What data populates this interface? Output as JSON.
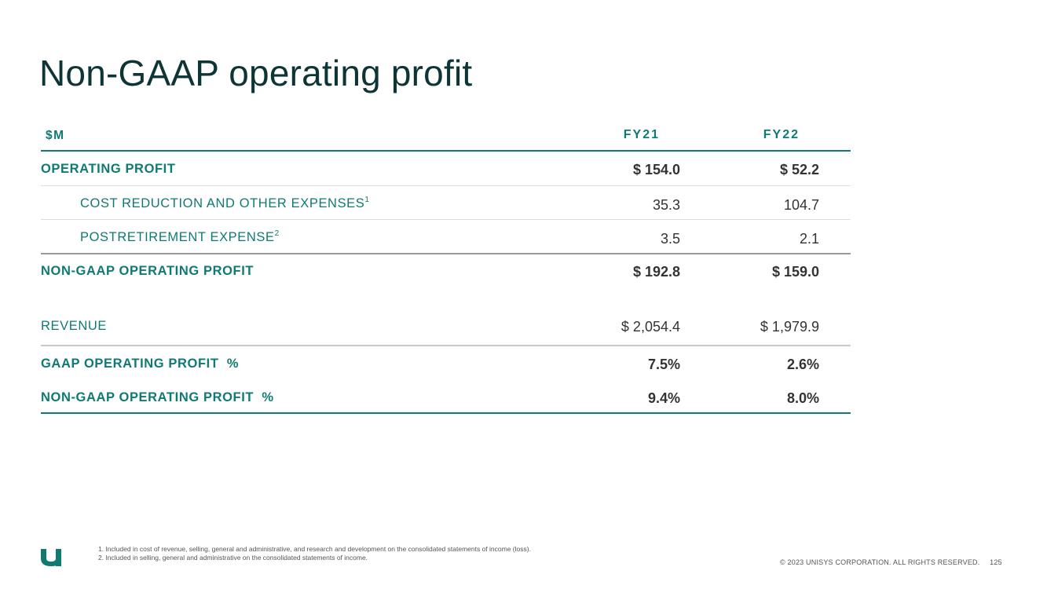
{
  "title": "Non-GAAP operating profit",
  "table": {
    "header": {
      "label": "$M",
      "fy21": "FY21",
      "fy22": "FY22"
    },
    "rows": [
      {
        "label": "OPERATING PROFIT",
        "sup": "",
        "fy21": "$ 154.0",
        "fy22": "$ 52.2"
      },
      {
        "label": "COST REDUCTION AND OTHER EXPENSES",
        "sup": "1",
        "fy21": "35.3",
        "fy22": "104.7"
      },
      {
        "label": "POSTRETIREMENT EXPENSE",
        "sup": "2",
        "fy21": "3.5",
        "fy22": "2.1"
      },
      {
        "label": "NON-GAAP OPERATING PROFIT",
        "sup": "",
        "fy21": "$ 192.8",
        "fy22": "$ 159.0"
      },
      {
        "label": "REVENUE",
        "sup": "",
        "fy21": "$ 2,054.4",
        "fy22": "$ 1,979.9"
      },
      {
        "label": "GAAP OPERATING PROFIT  %",
        "sup": "",
        "fy21": "7.5%",
        "fy22": "2.6%"
      },
      {
        "label": "NON-GAAP OPERATING PROFIT  %",
        "sup": "",
        "fy21": "9.4%",
        "fy22": "8.0%"
      }
    ]
  },
  "footnotes": [
    "1. Included in cost of revenue, selling, general and administrative, and research and development on the consolidated statements of income (loss).",
    "2. Included in selling, general and administrative on the consolidated statements of income."
  ],
  "footer": {
    "copyright": "© 2023 UNISYS CORPORATION. ALL RIGHTS RESERVED.",
    "page_number": "125",
    "logo_icon": "unisys-u-logo-icon",
    "brand_color": "#0f7a72"
  }
}
